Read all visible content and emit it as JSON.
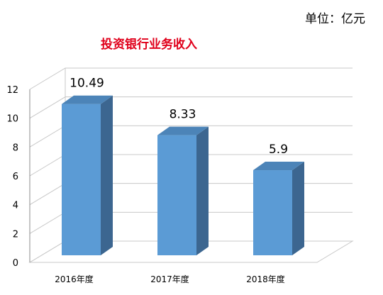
{
  "unit_label": "单位：亿元",
  "chart_data": {
    "type": "bar",
    "title": "投资银行业务收入",
    "categories": [
      "2016年度",
      "2017年度",
      "2018年度"
    ],
    "values": [
      10.49,
      8.33,
      5.9
    ],
    "data_labels": [
      "10.49",
      "8.33",
      "5.9"
    ],
    "ylim": [
      0,
      12
    ],
    "yticks": [
      0,
      2,
      4,
      6,
      8,
      10,
      12
    ],
    "grid": true,
    "bar_style": "3d",
    "colors": {
      "bar_front": "#5b9bd5",
      "bar_side": "#3c6690",
      "bar_top": "#4c84b8",
      "grid": "#c8c8c8"
    }
  }
}
